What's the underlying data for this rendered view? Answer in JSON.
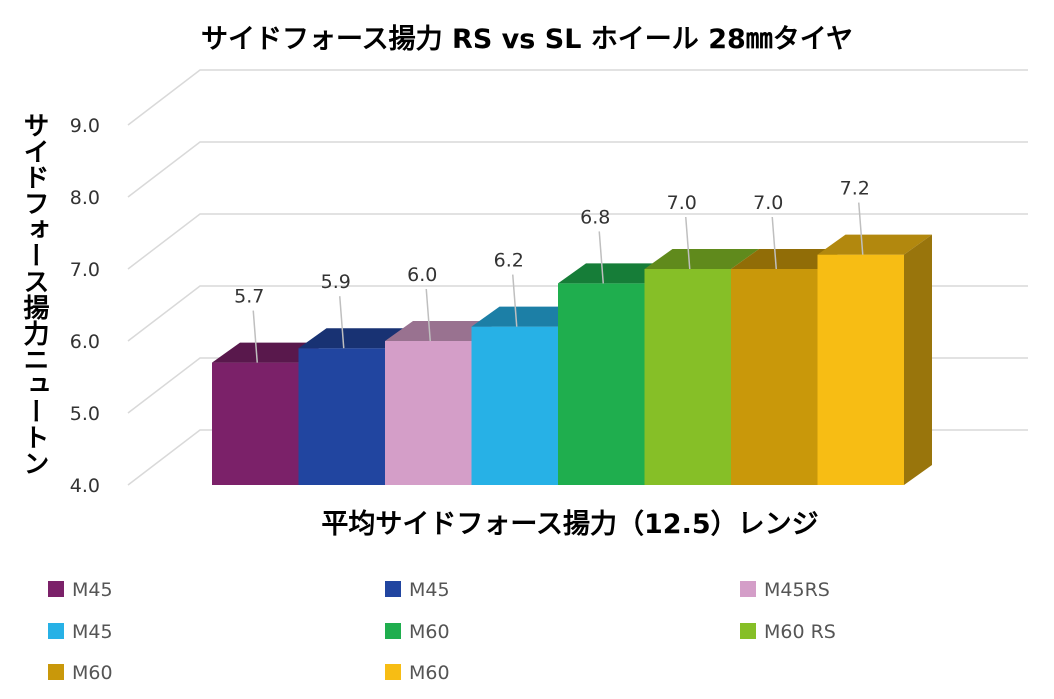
{
  "chart_data": {
    "type": "bar",
    "title": "サイドフォース揚力 RS vs SL ホイール 28㎜タイヤ",
    "xlabel": "平均サイドフォース揚力（12.5）レンジ",
    "ylabel": "サイドフォース揚力ニュートン",
    "ylim": [
      4.0,
      9.0
    ],
    "yticks": [
      "4.0",
      "5.0",
      "6.0",
      "7.0",
      "8.0",
      "9.0"
    ],
    "grid": true,
    "legend_position": "bottom",
    "series": [
      {
        "name": "M45",
        "value": 5.7,
        "label": "5.7",
        "color": "#7B2169"
      },
      {
        "name": "M45",
        "value": 5.9,
        "label": "5.9",
        "color": "#2145A0"
      },
      {
        "name": "M45RS",
        "value": 6.0,
        "label": "6.0",
        "color": "#D49EC8"
      },
      {
        "name": "M45",
        "value": 6.2,
        "label": "6.2",
        "color": "#27B1E6"
      },
      {
        "name": "M60",
        "value": 6.8,
        "label": "6.8",
        "color": "#1FAE4E"
      },
      {
        "name": "M60 RS",
        "value": 7.0,
        "label": "7.0",
        "color": "#86BF27"
      },
      {
        "name": "M60",
        "value": 7.0,
        "label": "7.0",
        "color": "#C9980A"
      },
      {
        "name": "M60",
        "value": 7.2,
        "label": "7.2",
        "color": "#F7BD14"
      }
    ]
  }
}
